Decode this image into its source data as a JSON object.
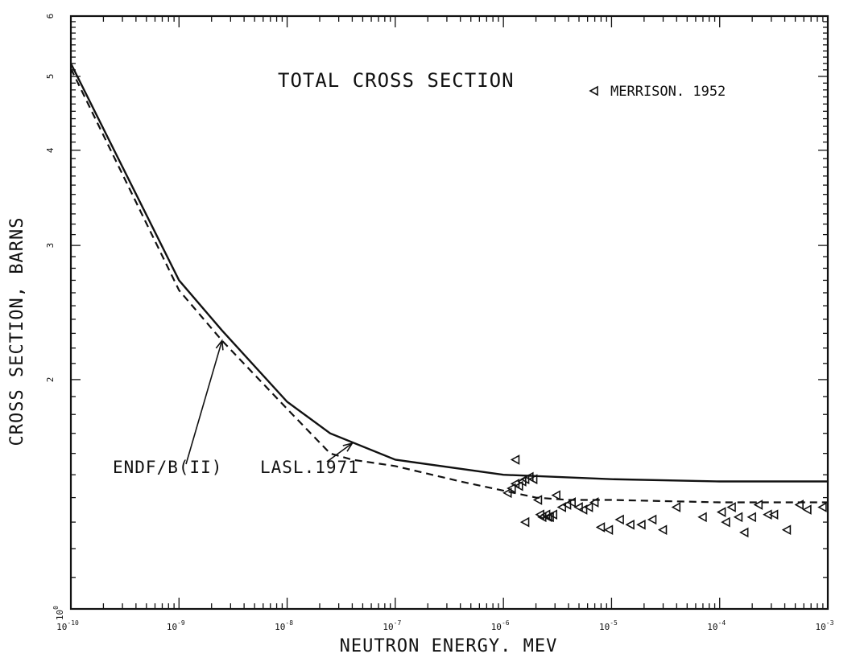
{
  "chart_data": {
    "type": "line",
    "title": "TOTAL CROSS SECTION",
    "xlabel": "NEUTRON ENERGY. MEV",
    "ylabel": "CROSS SECTION, BARNS",
    "xscale": "log",
    "yscale": "log",
    "xlim": [
      1e-10,
      0.001
    ],
    "ylim": [
      1.0,
      6.0
    ],
    "x_tick_labels": [
      {
        "value": 1e-10,
        "base": "10",
        "exp": "-10"
      },
      {
        "value": 1e-09,
        "base": "10",
        "exp": "-9"
      },
      {
        "value": 1e-08,
        "base": "10",
        "exp": "-8"
      },
      {
        "value": 1e-07,
        "base": "10",
        "exp": "-7"
      },
      {
        "value": 1e-06,
        "base": "10",
        "exp": "-6"
      },
      {
        "value": 1e-05,
        "base": "10",
        "exp": "-5"
      },
      {
        "value": 0.0001,
        "base": "10",
        "exp": "-4"
      },
      {
        "value": 0.001,
        "base": "10",
        "exp": "-3"
      }
    ],
    "y_tick_labels": [
      {
        "value": 1,
        "base": "10",
        "exp": "0"
      },
      {
        "value": 2,
        "label": "2"
      },
      {
        "value": 3,
        "label": "3"
      },
      {
        "value": 4,
        "label": "4"
      },
      {
        "value": 5,
        "label": "5"
      },
      {
        "value": 6,
        "label": "6"
      }
    ],
    "grid": false,
    "legend_entry": "MERRISON. 1952",
    "series": [
      {
        "name": "ENDF/B(II)",
        "style": "solid",
        "x": [
          1e-10,
          1e-09,
          2.5e-09,
          1e-08,
          2.5e-08,
          1e-07,
          1e-06,
          1e-05,
          0.0001,
          0.001
        ],
        "y": [
          5.2,
          2.7,
          2.32,
          1.87,
          1.7,
          1.57,
          1.5,
          1.48,
          1.47,
          1.47
        ]
      },
      {
        "name": "LASL.1971",
        "style": "dashed",
        "x": [
          1e-10,
          1e-09,
          2.5e-09,
          1e-08,
          2.5e-08,
          4e-08,
          1e-07,
          4e-07,
          1e-06,
          2e-06,
          4e-06,
          1e-05,
          0.0001,
          0.001
        ],
        "y": [
          5.12,
          2.62,
          2.25,
          1.83,
          1.6,
          1.57,
          1.54,
          1.47,
          1.43,
          1.4,
          1.39,
          1.39,
          1.38,
          1.38
        ]
      },
      {
        "name": "MERRISON. 1952",
        "style": "markers",
        "marker": "left-triangle",
        "x": [
          1.1e-06,
          1.2e-06,
          1.3e-06,
          1.4e-06,
          1.5e-06,
          1.6e-06,
          1.75e-06,
          1.9e-06,
          1.3e-06,
          2.1e-06,
          2.3e-06,
          2.5e-06,
          2.7e-06,
          2.9e-06,
          3.1e-06,
          3.5e-06,
          3.9e-06,
          4.3e-06,
          5e-06,
          5.5e-06,
          6.2e-06,
          7e-06,
          1.6e-06,
          2.2e-06,
          2.6e-06,
          8e-06,
          9.5e-06,
          1.2e-05,
          1.5e-05,
          1.9e-05,
          2.4e-05,
          3e-05,
          4e-05,
          7e-05,
          0.000105,
          0.000115,
          0.00013,
          0.00015,
          0.00017,
          0.0002,
          0.00023,
          0.00028,
          0.00032,
          0.00042,
          0.00055,
          0.00065,
          0.0009
        ],
        "y": [
          1.42,
          1.44,
          1.46,
          1.45,
          1.47,
          1.48,
          1.49,
          1.48,
          1.57,
          1.39,
          1.32,
          1.33,
          1.32,
          1.33,
          1.41,
          1.36,
          1.37,
          1.38,
          1.36,
          1.35,
          1.36,
          1.38,
          1.3,
          1.33,
          1.32,
          1.28,
          1.27,
          1.31,
          1.29,
          1.29,
          1.31,
          1.27,
          1.36,
          1.32,
          1.34,
          1.3,
          1.36,
          1.32,
          1.26,
          1.32,
          1.37,
          1.33,
          1.33,
          1.27,
          1.37,
          1.35,
          1.36
        ]
      }
    ],
    "annotations": [
      {
        "text": "ENDF/B(II)",
        "at": [
          2.5e-09,
          2.25
        ]
      },
      {
        "text": "LASL.1971",
        "at": [
          4e-08,
          1.65
        ]
      }
    ]
  }
}
